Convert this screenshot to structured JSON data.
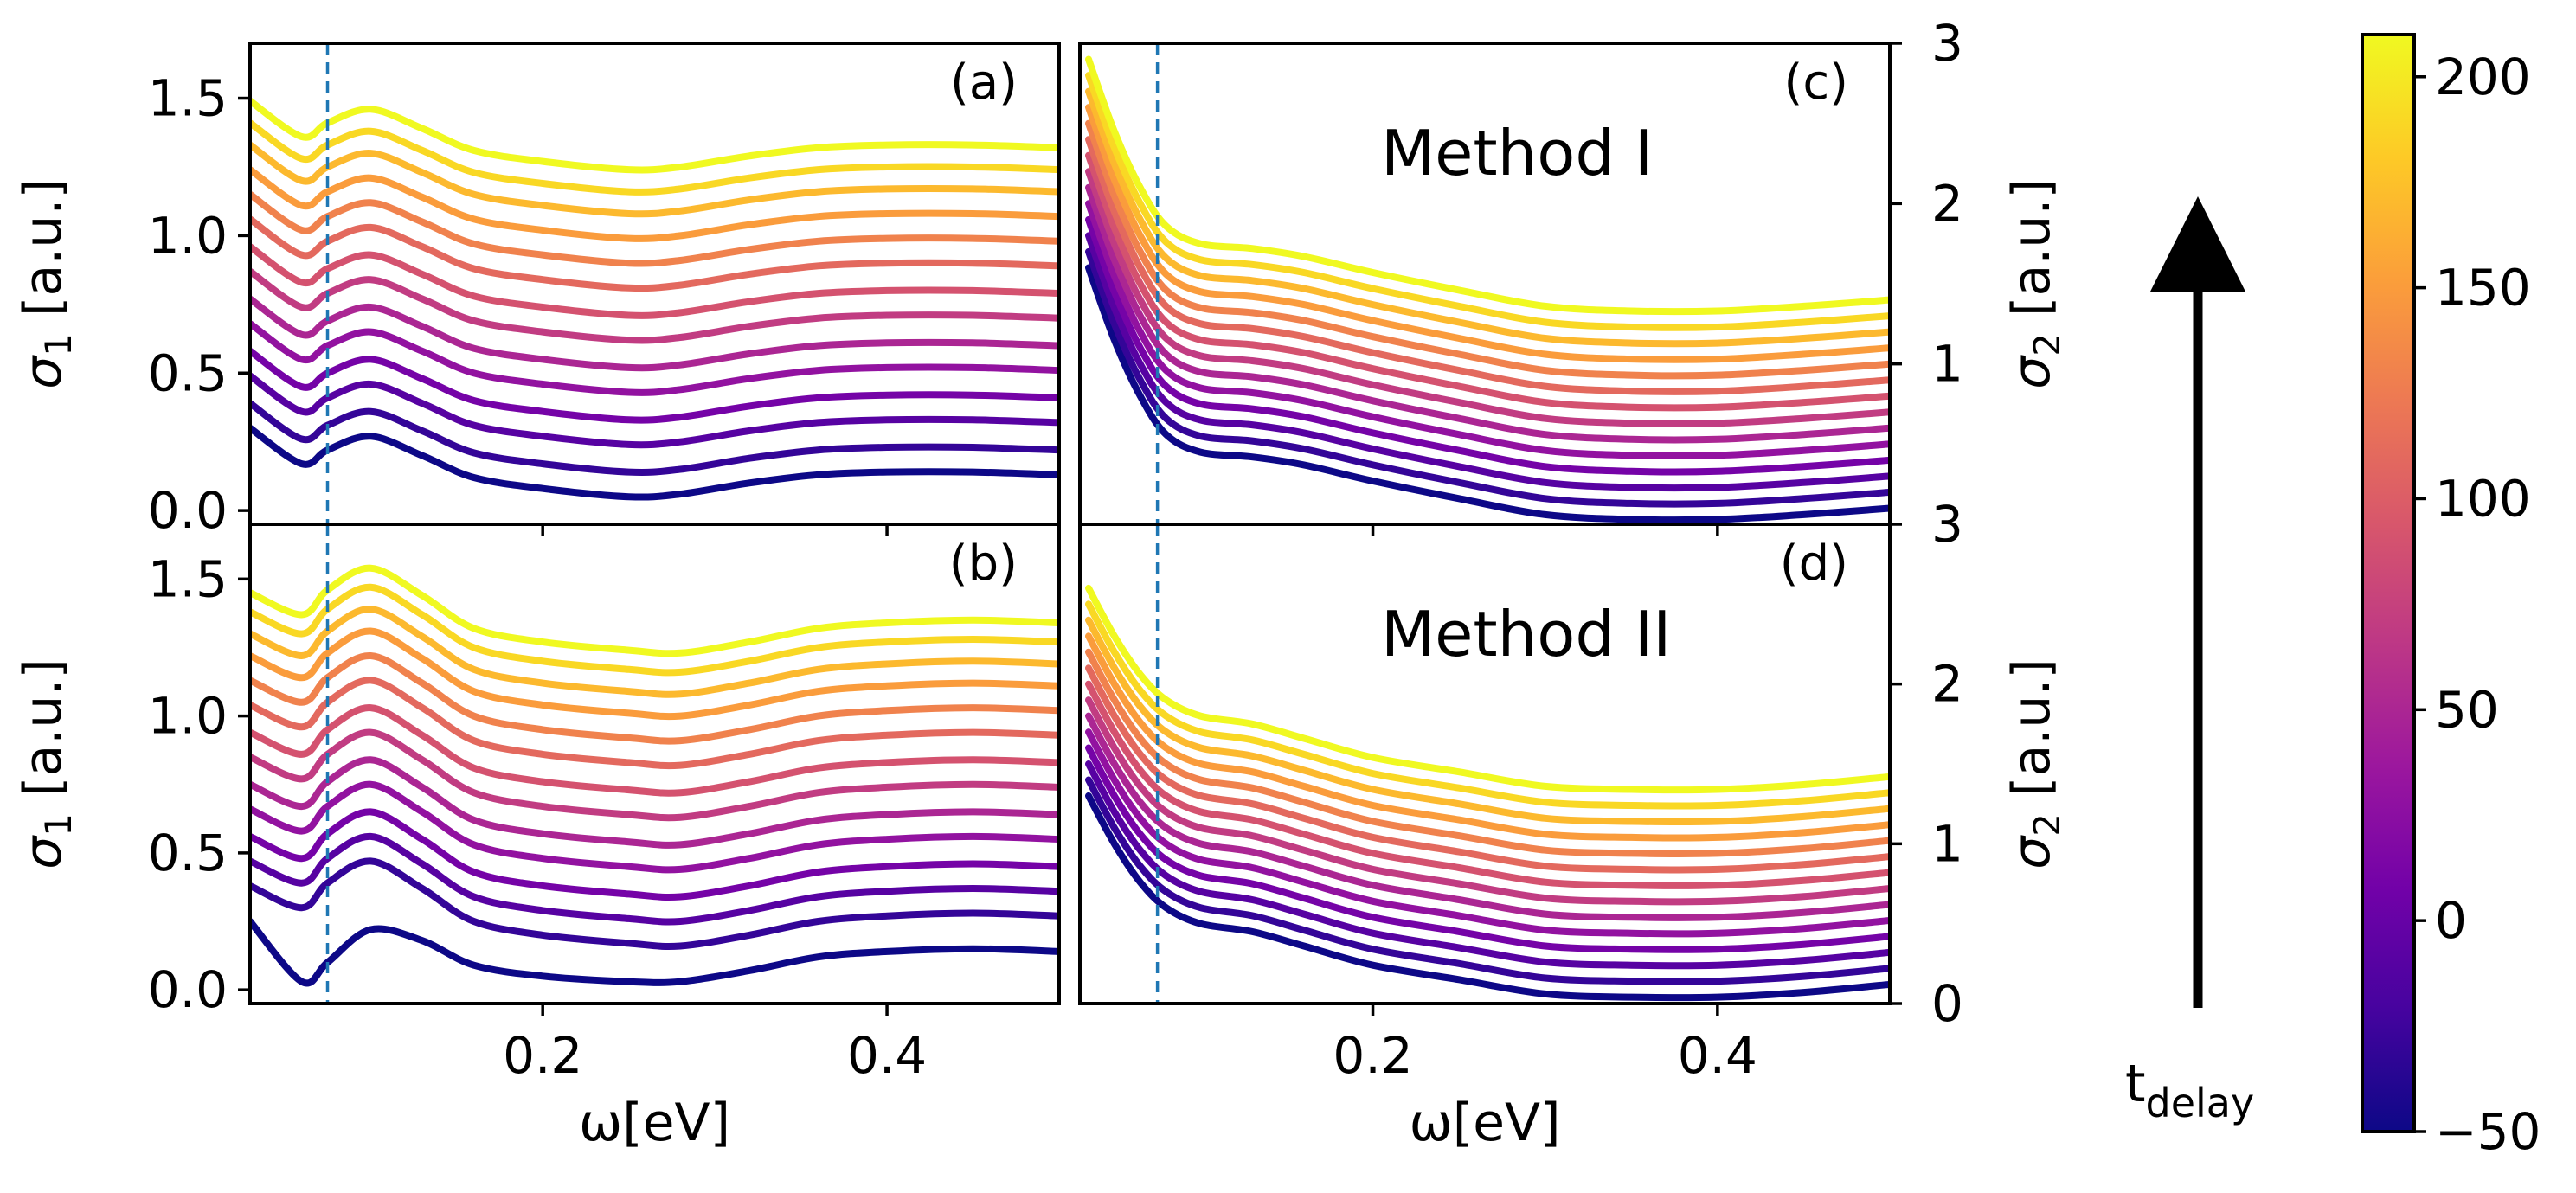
{
  "chart_data": {
    "type": "line",
    "figure": "optical conductivity spectra at successive pump-probe delays",
    "x_axis": {
      "label": "ω[eV]",
      "range": [
        0.03,
        0.5
      ],
      "ticks": [
        0.2,
        0.4
      ],
      "tick_labels": [
        "0.2",
        "0.4"
      ]
    },
    "marker_line": {
      "x": 0.075,
      "style": "dashed",
      "color": "#1f77b4"
    },
    "colorbar": {
      "colormap": "plasma",
      "range": [
        -50,
        210
      ],
      "ticks": [
        -50,
        0,
        50,
        100,
        150,
        200
      ],
      "tick_labels": [
        "−50",
        "0",
        "50",
        "100",
        "150",
        "200"
      ],
      "colors": [
        "#0d0887",
        "#46039f",
        "#7201a8",
        "#9c179e",
        "#bd3786",
        "#d8576b",
        "#ed7953",
        "#fb9f3a",
        "#fdca26",
        "#f0f921"
      ]
    },
    "arrow_label": {
      "main": "t",
      "subscript": "delay"
    },
    "delays": [
      -50,
      -30,
      -10,
      10,
      30,
      50,
      70,
      90,
      110,
      130,
      150,
      170,
      190,
      210
    ],
    "panels": [
      {
        "id": "a",
        "label": "(a)",
        "quantity": "sigma1",
        "method": "",
        "y_label": {
          "symbol": "σ",
          "sub": "1",
          "unit": " [a.u.]"
        },
        "y_range": [
          -0.05,
          1.7
        ],
        "y_ticks": [
          0.0,
          0.5,
          1.0,
          1.5
        ],
        "y_tick_labels": [
          "0.0",
          "0.5",
          "1.0",
          "1.5"
        ],
        "x": [
          0.03,
          0.06,
          0.075,
          0.1,
          0.13,
          0.16,
          0.2,
          0.25,
          0.28,
          0.32,
          0.36,
          0.4,
          0.45,
          0.5
        ],
        "base": [
          0.3,
          0.17,
          0.22,
          0.27,
          0.2,
          0.12,
          0.08,
          0.05,
          0.06,
          0.1,
          0.13,
          0.14,
          0.14,
          0.13
        ],
        "offsets": [
          0,
          0.09,
          0.19,
          0.28,
          0.38,
          0.47,
          0.57,
          0.66,
          0.76,
          0.85,
          0.94,
          1.03,
          1.11,
          1.19
        ],
        "shape_shift": [
          0,
          0,
          0,
          0,
          0,
          0,
          0,
          0,
          0,
          0,
          0,
          0,
          0,
          0
        ]
      },
      {
        "id": "b",
        "label": "(b)",
        "quantity": "sigma1",
        "method": "",
        "y_label": {
          "symbol": "σ",
          "sub": "1",
          "unit": " [a.u.]"
        },
        "y_range": [
          -0.05,
          1.7
        ],
        "y_ticks": [
          0.0,
          0.5,
          1.0,
          1.5
        ],
        "y_tick_labels": [
          "0.0",
          "0.5",
          "1.0",
          "1.5"
        ],
        "x": [
          0.03,
          0.06,
          0.075,
          0.1,
          0.13,
          0.16,
          0.2,
          0.25,
          0.28,
          0.32,
          0.36,
          0.4,
          0.45,
          0.5
        ],
        "base": [
          0.25,
          0.03,
          0.1,
          0.22,
          0.18,
          0.09,
          0.05,
          0.03,
          0.03,
          0.07,
          0.12,
          0.14,
          0.15,
          0.14
        ],
        "offsets": [
          0,
          0.13,
          0.22,
          0.31,
          0.41,
          0.5,
          0.6,
          0.69,
          0.79,
          0.88,
          0.97,
          1.05,
          1.13,
          1.2
        ],
        "shape_shift": [
          0,
          0.14,
          0.16,
          0.12,
          0.06,
          0.03,
          0.02,
          0.01,
          0,
          0,
          0,
          0,
          0,
          0
        ]
      },
      {
        "id": "c",
        "label": "(c)",
        "quantity": "sigma2",
        "method": "Method I",
        "y_label": {
          "symbol": "σ",
          "sub": "2",
          "unit": " [a.u.]"
        },
        "y_range": [
          0,
          3
        ],
        "y_ticks": [
          1,
          2,
          3
        ],
        "y_tick_labels": [
          "1",
          "2",
          "3"
        ],
        "x": [
          0.035,
          0.05,
          0.065,
          0.08,
          0.1,
          0.13,
          0.16,
          0.2,
          0.25,
          0.3,
          0.35,
          0.4,
          0.45,
          0.5
        ],
        "base": [
          1.6,
          1.15,
          0.8,
          0.56,
          0.45,
          0.42,
          0.37,
          0.27,
          0.16,
          0.06,
          0.03,
          0.03,
          0.06,
          0.1
        ],
        "offsets": [
          0,
          0.1,
          0.2,
          0.3,
          0.4,
          0.5,
          0.6,
          0.7,
          0.8,
          0.9,
          1.0,
          1.1,
          1.2,
          1.3
        ],
        "shape_shift": [
          0,
          0,
          0,
          0,
          0,
          0,
          0,
          0,
          0,
          0,
          0,
          0,
          0,
          0
        ]
      },
      {
        "id": "d",
        "label": "(d)",
        "quantity": "sigma2",
        "method": "Method II",
        "y_label": {
          "symbol": "σ",
          "sub": "2",
          "unit": " [a.u.]"
        },
        "y_range": [
          0,
          3
        ],
        "y_ticks": [
          0,
          1,
          2,
          3
        ],
        "y_tick_labels": [
          "0",
          "1",
          "2",
          "3"
        ],
        "x": [
          0.035,
          0.05,
          0.065,
          0.08,
          0.1,
          0.13,
          0.16,
          0.2,
          0.25,
          0.3,
          0.35,
          0.4,
          0.45,
          0.5
        ],
        "base": [
          1.3,
          1.0,
          0.76,
          0.6,
          0.5,
          0.45,
          0.36,
          0.24,
          0.15,
          0.06,
          0.04,
          0.04,
          0.07,
          0.12
        ],
        "offsets": [
          0,
          0.1,
          0.2,
          0.3,
          0.4,
          0.5,
          0.6,
          0.7,
          0.8,
          0.9,
          1.0,
          1.1,
          1.2,
          1.3
        ],
        "shape_shift": [
          0,
          0,
          0,
          0,
          0,
          0,
          0,
          0,
          0,
          0,
          0,
          0,
          0,
          0
        ]
      }
    ]
  }
}
